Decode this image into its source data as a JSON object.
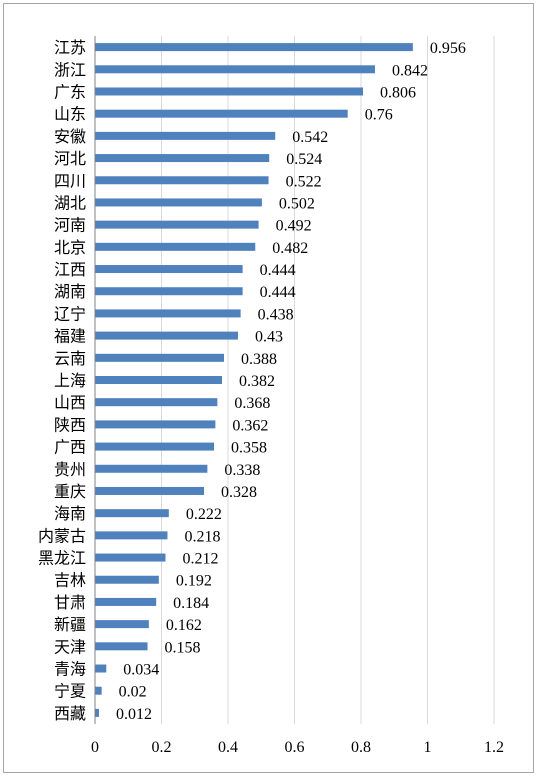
{
  "chart_data": {
    "type": "bar",
    "orientation": "horizontal",
    "categories": [
      "江苏",
      "浙江",
      "广东",
      "山东",
      "安徽",
      "河北",
      "四川",
      "湖北",
      "河南",
      "北京",
      "江西",
      "湖南",
      "辽宁",
      "福建",
      "云南",
      "上海",
      "山西",
      "陕西",
      "广西",
      "贵州",
      "重庆",
      "海南",
      "内蒙古",
      "黑龙江",
      "吉林",
      "甘肃",
      "新疆",
      "天津",
      "青海",
      "宁夏",
      "西藏"
    ],
    "values": [
      0.956,
      0.842,
      0.806,
      0.76,
      0.542,
      0.524,
      0.522,
      0.502,
      0.492,
      0.482,
      0.444,
      0.444,
      0.438,
      0.43,
      0.388,
      0.382,
      0.368,
      0.362,
      0.358,
      0.338,
      0.328,
      0.222,
      0.218,
      0.212,
      0.192,
      0.184,
      0.162,
      0.158,
      0.034,
      0.02,
      0.012
    ],
    "value_labels": [
      "0.956",
      "0.842",
      "0.806",
      "0.76",
      "0.542",
      "0.524",
      "0.522",
      "0.502",
      "0.492",
      "0.482",
      "0.444",
      "0.444",
      "0.438",
      "0.43",
      "0.388",
      "0.382",
      "0.368",
      "0.362",
      "0.358",
      "0.338",
      "0.328",
      "0.222",
      "0.218",
      "0.212",
      "0.192",
      "0.184",
      "0.162",
      "0.158",
      "0.034",
      "0.02",
      "0.012"
    ],
    "xlim": [
      0,
      1.2
    ],
    "xticks": [
      "0",
      "0.2",
      "0.4",
      "0.6",
      "0.8",
      "1",
      "1.2"
    ],
    "grid": "vertical",
    "title": "",
    "xlabel": "",
    "ylabel": "",
    "bar_color": "#4f81bd",
    "grid_color": "#d9d9d9"
  }
}
